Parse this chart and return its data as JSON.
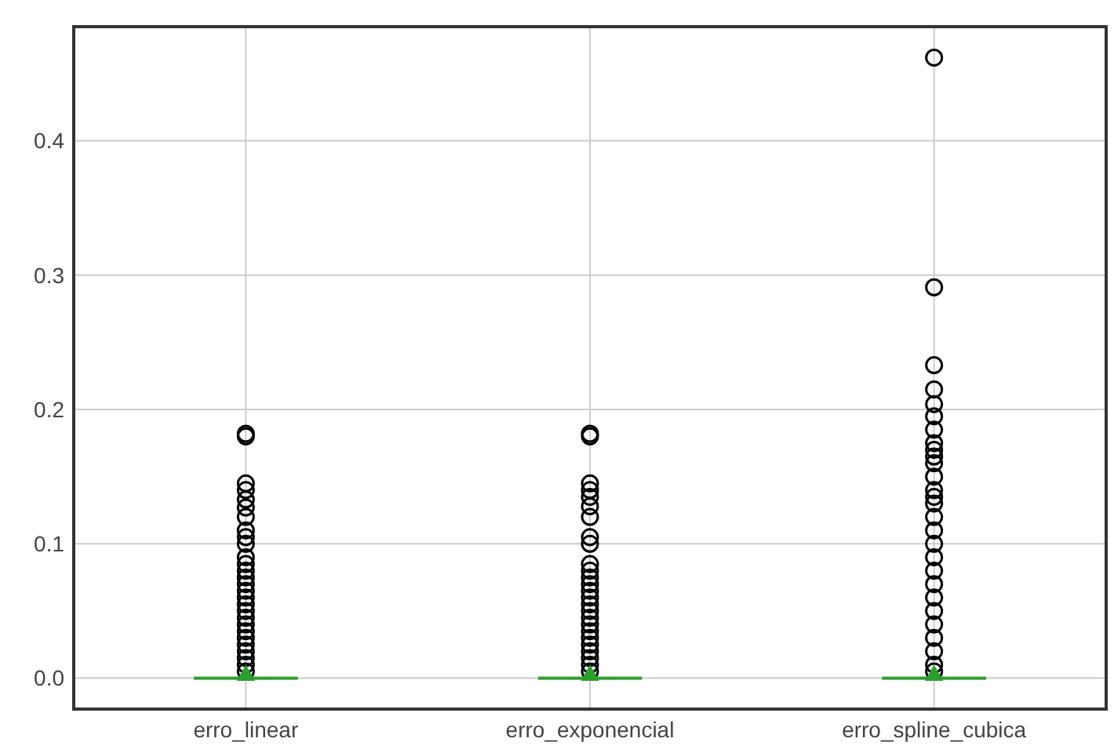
{
  "chart_data": {
    "type": "box",
    "categories": [
      "erro_linear",
      "erro_exponencial",
      "erro_spline_cubica"
    ],
    "boxes": [
      {
        "low": 0,
        "q1": 0,
        "median": 0,
        "q3": 0,
        "high": 0,
        "mean": 0.002,
        "outliers": [
          0.182,
          0.18,
          0.145,
          0.14,
          0.133,
          0.127,
          0.12,
          0.11,
          0.105,
          0.1,
          0.09,
          0.085,
          0.08,
          0.075,
          0.07,
          0.065,
          0.06,
          0.055,
          0.05,
          0.045,
          0.04,
          0.035,
          0.03,
          0.025,
          0.02,
          0.015,
          0.01,
          0.005
        ]
      },
      {
        "low": 0,
        "q1": 0,
        "median": 0,
        "q3": 0,
        "high": 0,
        "mean": 0.002,
        "outliers": [
          0.182,
          0.18,
          0.145,
          0.14,
          0.135,
          0.128,
          0.12,
          0.105,
          0.1,
          0.085,
          0.08,
          0.075,
          0.07,
          0.065,
          0.06,
          0.055,
          0.05,
          0.045,
          0.04,
          0.035,
          0.03,
          0.025,
          0.02,
          0.015,
          0.01,
          0.005
        ]
      },
      {
        "low": 0,
        "q1": 0,
        "median": 0,
        "q3": 0,
        "high": 0,
        "mean": 0.002,
        "outliers": [
          0.462,
          0.291,
          0.233,
          0.215,
          0.204,
          0.195,
          0.185,
          0.175,
          0.17,
          0.165,
          0.16,
          0.15,
          0.14,
          0.135,
          0.13,
          0.12,
          0.11,
          0.1,
          0.09,
          0.08,
          0.07,
          0.06,
          0.05,
          0.04,
          0.03,
          0.02,
          0.01,
          0.005
        ]
      }
    ],
    "color": "#2ca02c",
    "ylim": [
      -0.023,
      0.485
    ],
    "yticks": [
      {
        "value": 0,
        "label": "0.0"
      },
      0.1,
      0.2,
      0.3,
      0.4
    ],
    "grid": true,
    "marker": "circle"
  }
}
